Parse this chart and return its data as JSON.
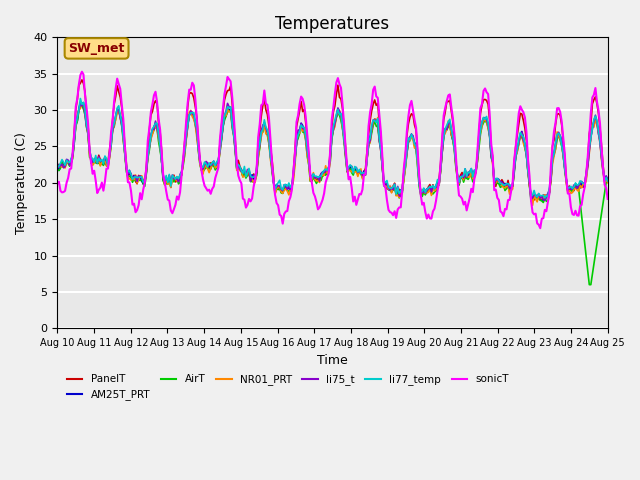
{
  "title": "Temperatures",
  "xlabel": "Time",
  "ylabel": "Temperature (C)",
  "ylim": [
    0,
    40
  ],
  "xtick_labels": [
    "Aug 10",
    "Aug 11",
    "Aug 12",
    "Aug 13",
    "Aug 14",
    "Aug 15",
    "Aug 16",
    "Aug 17",
    "Aug 18",
    "Aug 19",
    "Aug 20",
    "Aug 21",
    "Aug 22",
    "Aug 23",
    "Aug 24",
    "Aug 25"
  ],
  "series": {
    "PanelT": {
      "color": "#cc0000",
      "lw": 1.2
    },
    "AM25T_PRT": {
      "color": "#0000cc",
      "lw": 1.2
    },
    "AirT": {
      "color": "#00cc00",
      "lw": 1.2
    },
    "NR01_PRT": {
      "color": "#ff8800",
      "lw": 1.2
    },
    "li75_t": {
      "color": "#8800cc",
      "lw": 1.2
    },
    "li77_temp": {
      "color": "#00cccc",
      "lw": 1.2
    },
    "sonicT": {
      "color": "#ff00ff",
      "lw": 1.5
    }
  },
  "annotation_text": "SW_met",
  "annotation_color": "#880000",
  "annotation_bg": "#ffdd88",
  "annotation_border": "#aa8800",
  "bg_color": "#e8e8e8",
  "grid_color": "#ffffff",
  "title_fontsize": 12
}
